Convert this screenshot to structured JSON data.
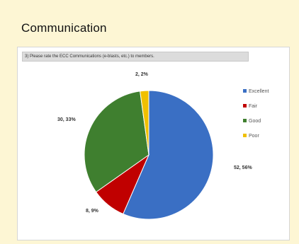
{
  "heading": "Communication",
  "question": "3) Please rate the ECC Communications (e-blasts, etc.) to members.",
  "chart_data": {
    "type": "pie",
    "series": [
      {
        "name": "Excellent",
        "value": 52,
        "percent": 56,
        "label": "52, 56%",
        "color": "#3a6fc4"
      },
      {
        "name": "Fair",
        "value": 8,
        "percent": 9,
        "label": "8, 9%",
        "color": "#c00000"
      },
      {
        "name": "Good",
        "value": 30,
        "percent": 33,
        "label": "30, 33%",
        "color": "#3f7f2f"
      },
      {
        "name": "Poor",
        "value": 2,
        "percent": 2,
        "label": "2, 2%",
        "color": "#f0c000"
      }
    ],
    "legend_position": "right"
  }
}
